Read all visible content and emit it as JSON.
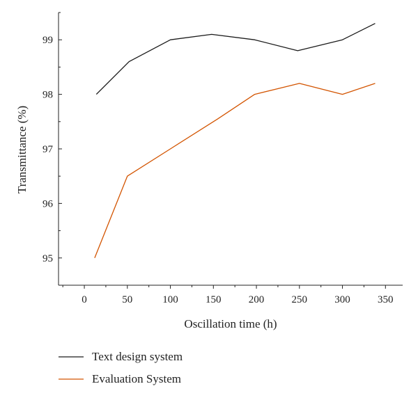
{
  "chart_data": {
    "type": "line",
    "title": "",
    "xlabel": "Oscillation time (h)",
    "ylabel": "Transmittance (%)",
    "xlim": [
      -30,
      370
    ],
    "ylim": [
      94.5,
      99.5
    ],
    "x_ticks": [
      0,
      50,
      100,
      150,
      200,
      250,
      300,
      350
    ],
    "y_ticks": [
      95,
      96,
      97,
      98,
      99
    ],
    "grid": false,
    "legend_position": "bottom",
    "series": [
      {
        "name": "Text design system",
        "color": "#1a1a1a",
        "x": [
          14,
          52,
          100,
          148,
          198,
          248,
          300,
          338
        ],
        "y": [
          98.0,
          98.6,
          99.0,
          99.1,
          99.0,
          98.8,
          99.0,
          99.3
        ]
      },
      {
        "name": "Evaluation System",
        "color": "#d35400",
        "x": [
          12,
          50,
          100,
          155,
          198,
          250,
          300,
          338
        ],
        "y": [
          95.0,
          96.5,
          97.0,
          97.55,
          98.0,
          98.2,
          98.0,
          98.2
        ]
      }
    ]
  }
}
